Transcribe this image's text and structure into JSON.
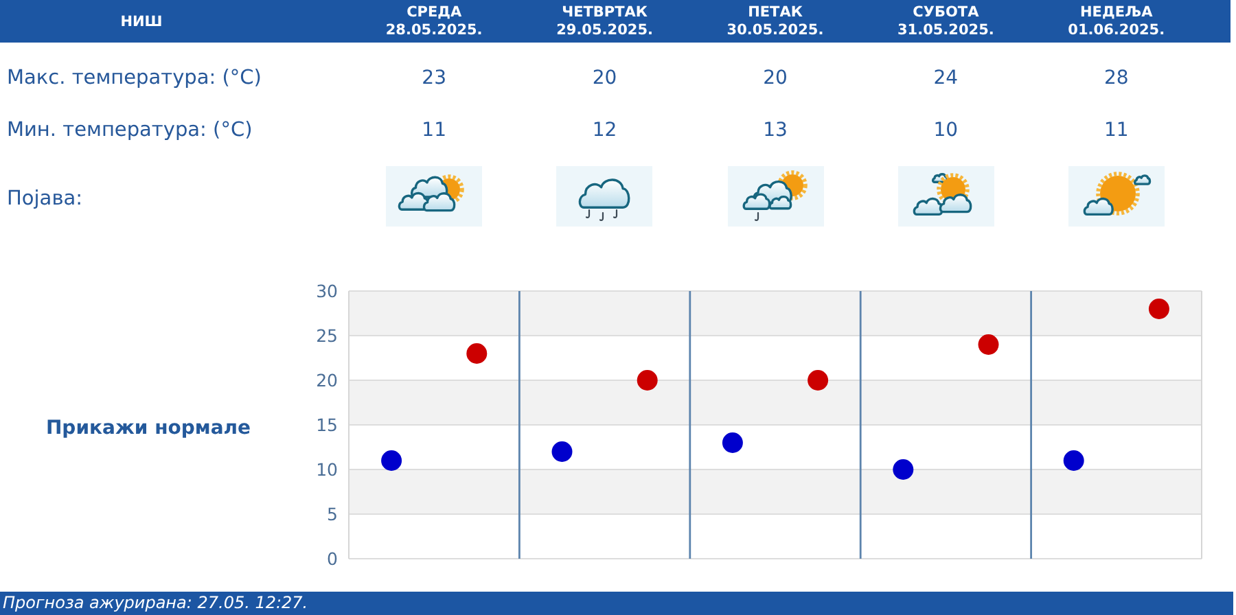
{
  "chart_data": {
    "type": "scatter",
    "title": "НИШ",
    "categories": [
      null,
      null,
      null,
      null,
      null
    ],
    "series": [
      {
        "color": "#cc0000",
        "values": [
          23,
          20,
          20,
          24,
          28
        ]
      },
      {
        "color": "#0000cc",
        "values": [
          11,
          12,
          13,
          10,
          11
        ]
      }
    ],
    "ylim": [
      0,
      30
    ],
    "yticks": [
      0,
      5,
      10,
      15,
      20,
      25,
      30
    ],
    "grid": true,
    "marker": "circle",
    "legend": false,
    "data_labels": true,
    "tick_labels": "y",
    "annotations": [
      "СРЕДА 28.05.2025.",
      "ЧЕТВРТАК 29.05.2025.",
      "ПЕТАК 30.05.2025.",
      "СУБОТА 31.05.2025.",
      "НЕДЕЉА 01.06.2025.",
      "Макс. температура: (°C)",
      "Мин. температура: (°C)",
      "Појава:",
      "Прикажи нормале",
      "Прогноза ажурирана: 27.05. 12:27."
    ]
  }
}
